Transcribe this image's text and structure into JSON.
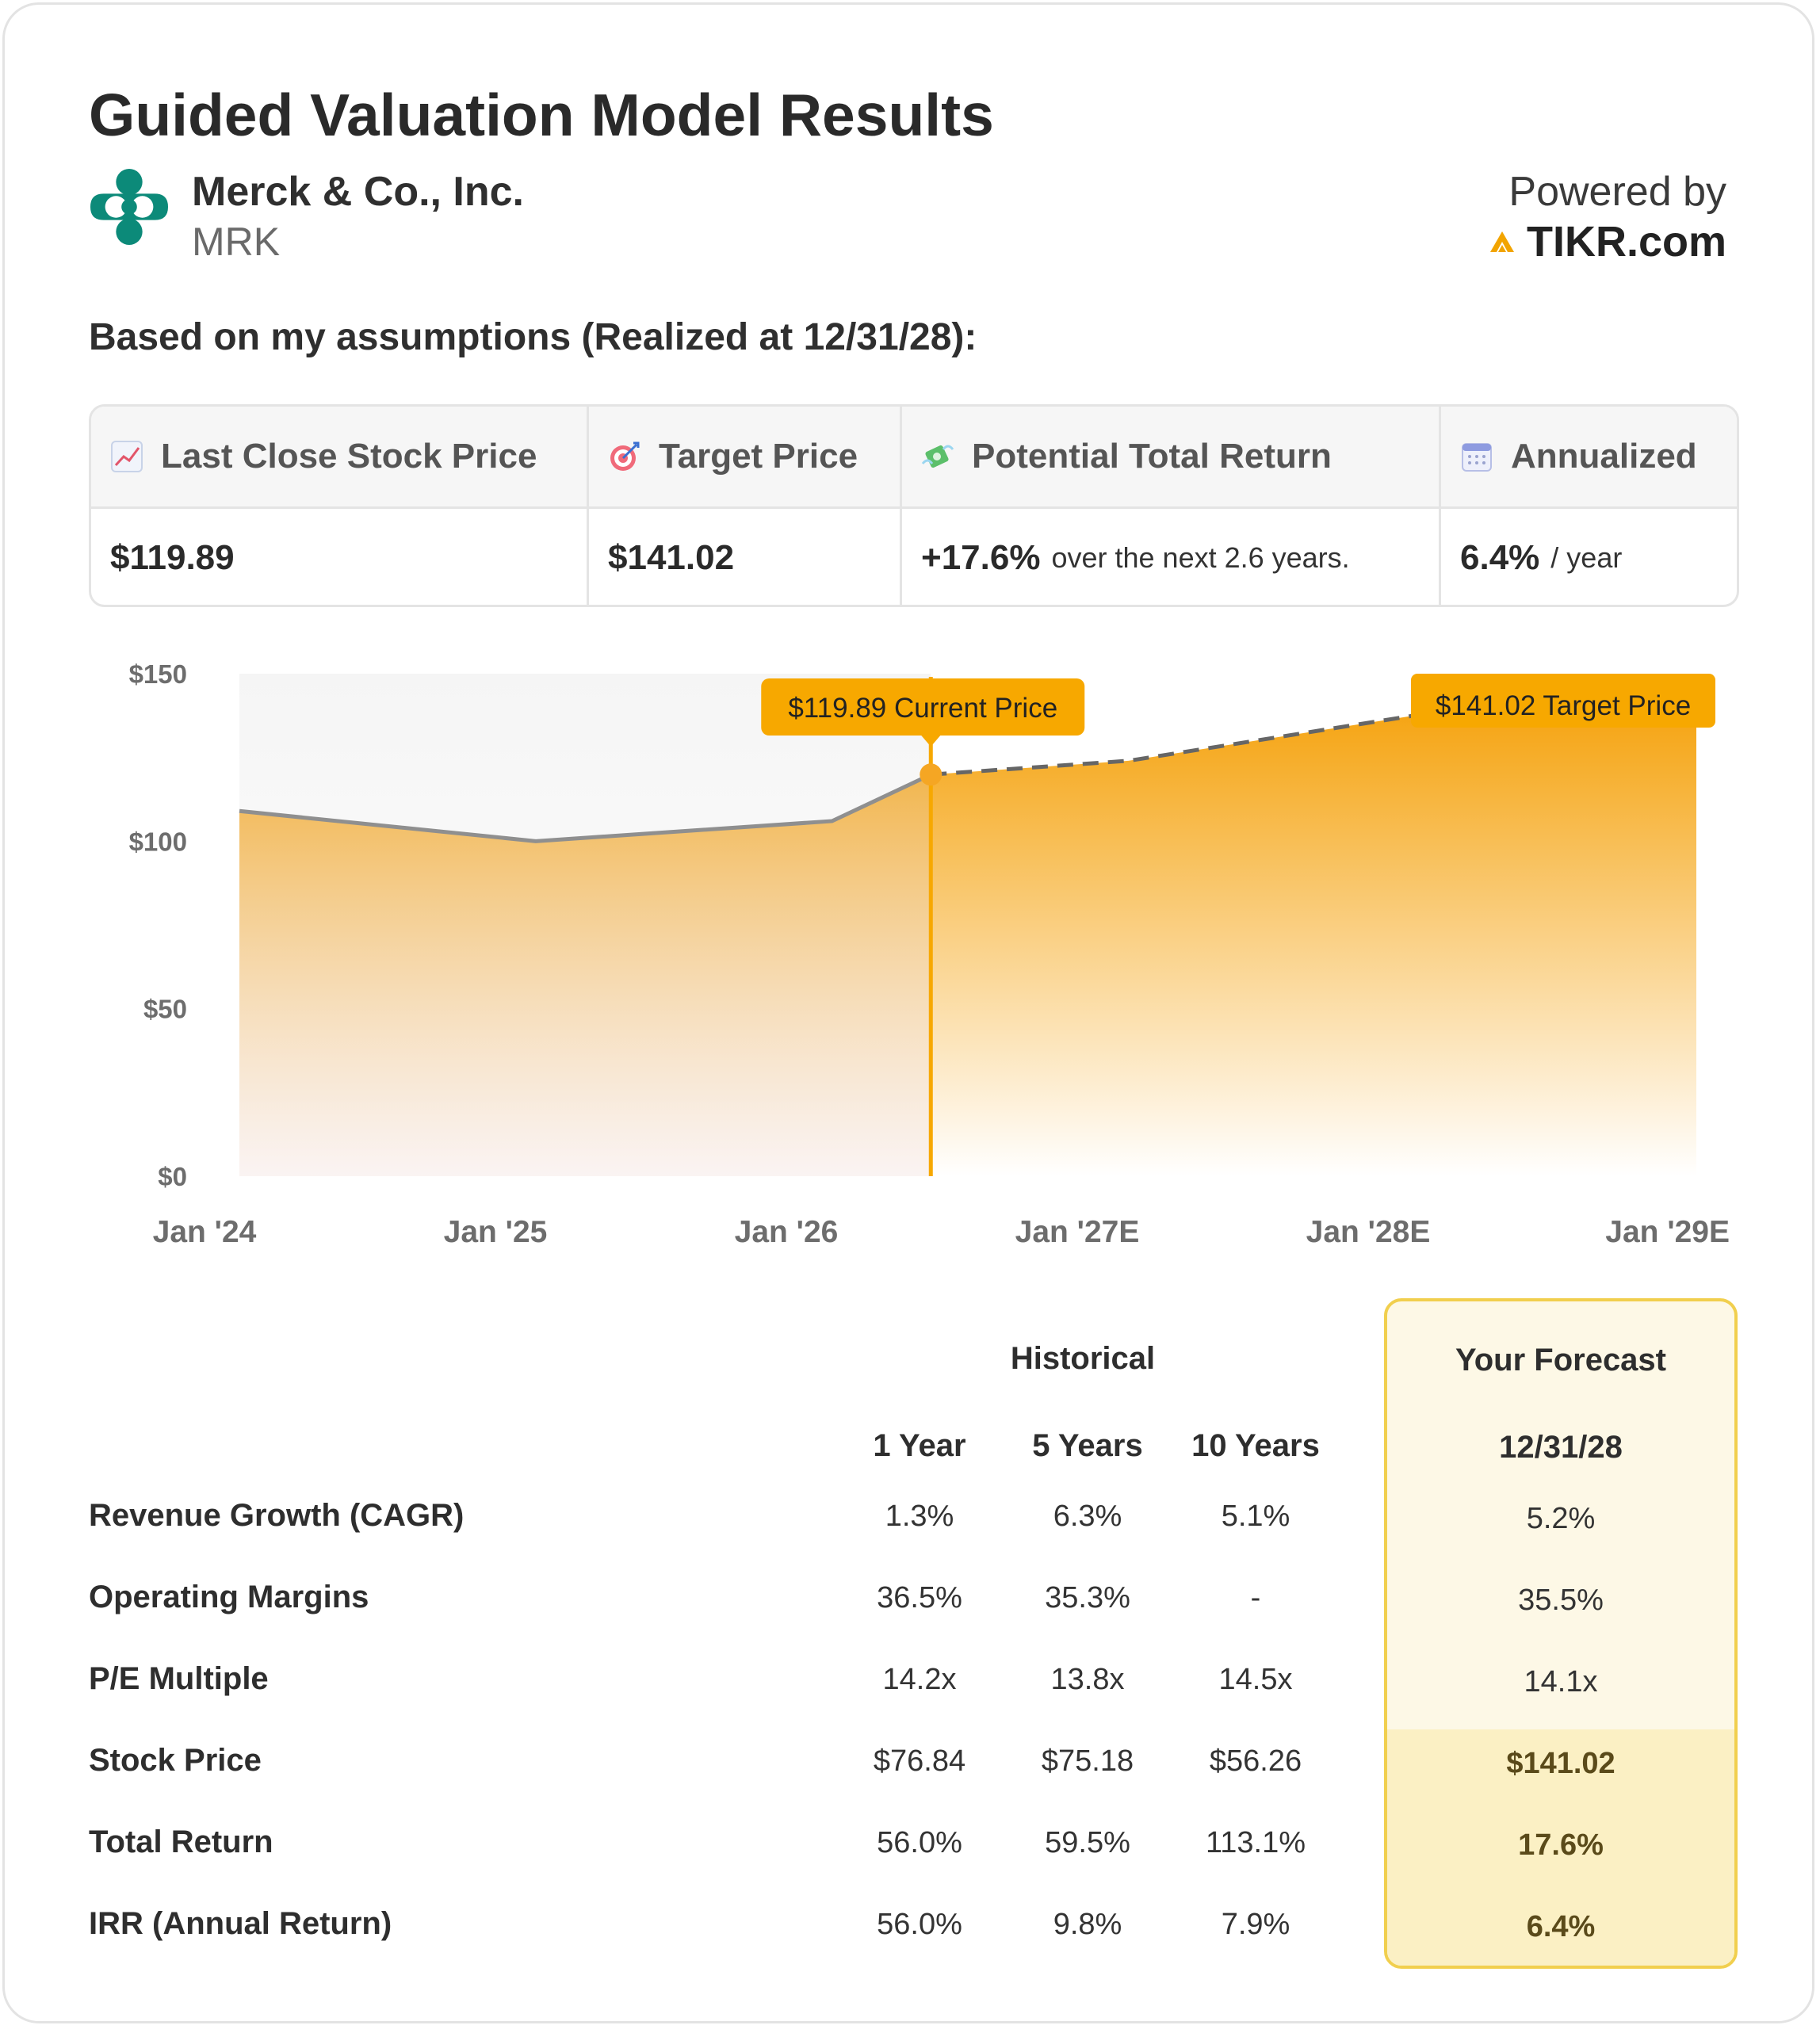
{
  "header": {
    "title": "Guided Valuation Model Results",
    "company": "Merck & Co., Inc.",
    "ticker": "MRK",
    "powered_by": "Powered by",
    "brand": "TIKR.com"
  },
  "subheading": "Based on my assumptions (Realized at 12/31/28):",
  "summary": {
    "headers": {
      "last_close": "Last Close Stock Price",
      "target": "Target Price",
      "potential": "Potential Total Return",
      "annualized": "Annualized"
    },
    "values": {
      "last_close": "$119.89",
      "target": "$141.02",
      "potential": "+17.6%",
      "potential_note": "over the next 2.6 years.",
      "annualized": "6.4%",
      "annualized_note": "/ year"
    }
  },
  "colors": {
    "accent": "#f7a800",
    "history_line": "#8f8f8f",
    "forecast_border": "#f1cf4e"
  },
  "chart_data": {
    "type": "area",
    "x_tick_labels": [
      "Jan '24",
      "Jan '25",
      "Jan '26",
      "Jan '27E",
      "Jan '28E",
      "Jan '29E"
    ],
    "y_tick_labels": [
      "$150",
      "$100",
      "$50",
      "$0"
    ],
    "ylim": [
      0,
      150
    ],
    "series": [
      {
        "style": "solid",
        "points": [
          {
            "x": "2024-01",
            "y": 109
          },
          {
            "x": "2025-01",
            "y": 100
          },
          {
            "x": "2026-01",
            "y": 106
          },
          {
            "x": "2026-05",
            "y": 119.89
          }
        ]
      },
      {
        "style": "dashed",
        "points": [
          {
            "x": "2026-05",
            "y": 119.89
          },
          {
            "x": "2027-01",
            "y": 124
          },
          {
            "x": "2028-01",
            "y": 138
          },
          {
            "x": "2028-12",
            "y": 141.02
          }
        ]
      }
    ],
    "annotations": [
      {
        "label": "$119.89 Current Price",
        "x": "2026-05",
        "y": 119.89
      },
      {
        "label": "$141.02 Target Price",
        "x": "2028-12",
        "y": 141.02
      }
    ]
  },
  "table": {
    "group_historical": "Historical",
    "group_forecast": "Your Forecast",
    "columns": [
      "1 Year",
      "5 Years",
      "10 Years"
    ],
    "forecast_date": "12/31/28",
    "rows": [
      {
        "label": "Revenue Growth (CAGR)",
        "values": [
          "1.3%",
          "6.3%",
          "5.1%"
        ],
        "forecast": "5.2%"
      },
      {
        "label": "Operating Margins",
        "values": [
          "36.5%",
          "35.3%",
          "-"
        ],
        "forecast": "35.5%"
      },
      {
        "label": "P/E Multiple",
        "values": [
          "14.2x",
          "13.8x",
          "14.5x"
        ],
        "forecast": "14.1x"
      },
      {
        "label": "Stock Price",
        "values": [
          "$76.84",
          "$75.18",
          "$56.26"
        ],
        "forecast": "$141.02"
      },
      {
        "label": "Total Return",
        "values": [
          "56.0%",
          "59.5%",
          "113.1%"
        ],
        "forecast": "17.6%"
      },
      {
        "label": "IRR (Annual Return)",
        "values": [
          "56.0%",
          "9.8%",
          "7.9%"
        ],
        "forecast": "6.4%"
      }
    ]
  }
}
